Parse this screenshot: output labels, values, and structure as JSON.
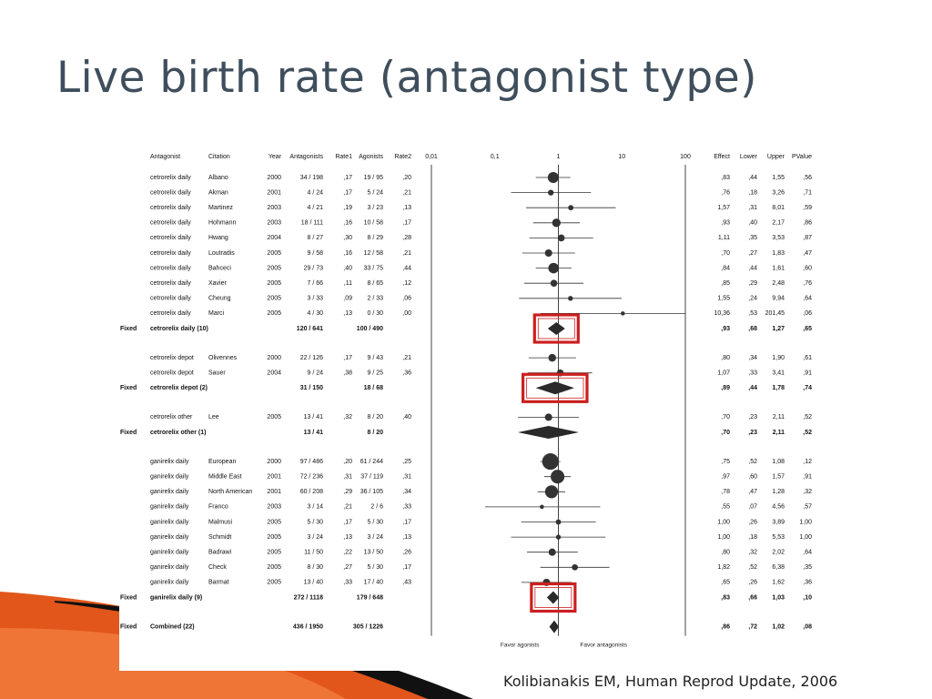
{
  "slide": {
    "title": "Live birth rate (antagonist type)",
    "citation": "Kolibianakis EM, Human Reprod Update, 2006"
  },
  "colors": {
    "title": "#3f4e5c",
    "highlight": "#cc1f1f",
    "marks": "#333333",
    "deco_orange": "#e2561b",
    "deco_black": "#111111"
  },
  "chart_data": {
    "type": "forest",
    "axis": {
      "scale": "log",
      "ticks": [
        "0,01",
        "0,1",
        "1",
        "10",
        "100"
      ],
      "tick_values": [
        0.01,
        0.1,
        1,
        10,
        100
      ]
    },
    "favor_left": "Favor agonists",
    "favor_right": "Favor antagonists",
    "columns": {
      "antagonist": "Antagonist",
      "citation": "Citation",
      "year": "Year",
      "antagonists": "Antagonists",
      "rate1": "Rate1",
      "agonists": "Agonists",
      "rate2": "Rate2",
      "effect": "Effect",
      "lower": "Lower",
      "upper": "Upper",
      "pvalue": "PValue"
    },
    "rows": [
      {
        "kind": "study",
        "antagonist": "cetrorelix daily",
        "citation": "Albano",
        "year": "2000",
        "antagonists": "34 / 198",
        "rate1": ",17",
        "agonists": "19 / 95",
        "rate2": ",20",
        "effect": ",83",
        "lower": ",44",
        "upper": "1,55",
        "p": ",56",
        "est": 0.83,
        "lo": 0.44,
        "hi": 1.55,
        "w": 1.0
      },
      {
        "kind": "study",
        "antagonist": "cetrorelix daily",
        "citation": "Akman",
        "year": "2001",
        "antagonists": "4 / 24",
        "rate1": ",17",
        "agonists": "5 / 24",
        "rate2": ",21",
        "effect": ",76",
        "lower": ",18",
        "upper": "3,26",
        "p": ",71",
        "est": 0.76,
        "lo": 0.18,
        "hi": 3.26,
        "w": 0.35
      },
      {
        "kind": "study",
        "antagonist": "cetrorelix daily",
        "citation": "Martinez",
        "year": "2003",
        "antagonists": "4 / 21",
        "rate1": ",19",
        "agonists": "3 / 23",
        "rate2": ",13",
        "effect": "1,57",
        "lower": ",31",
        "upper": "8,01",
        "p": ",59",
        "est": 1.57,
        "lo": 0.31,
        "hi": 8.01,
        "w": 0.3
      },
      {
        "kind": "study",
        "antagonist": "cetrorelix daily",
        "citation": "Hohmann",
        "year": "2003",
        "antagonists": "18 / 111",
        "rate1": ",16",
        "agonists": "10 / 58",
        "rate2": ",17",
        "effect": ",93",
        "lower": ",40",
        "upper": "2,17",
        "p": ",86",
        "est": 0.93,
        "lo": 0.4,
        "hi": 2.17,
        "w": 0.7
      },
      {
        "kind": "study",
        "antagonist": "cetrorelix daily",
        "citation": "Hwang",
        "year": "2004",
        "antagonists": "8 / 27",
        "rate1": ",30",
        "agonists": "8 / 29",
        "rate2": ",28",
        "effect": "1,11",
        "lower": ",35",
        "upper": "3,53",
        "p": ",87",
        "est": 1.11,
        "lo": 0.35,
        "hi": 3.53,
        "w": 0.5
      },
      {
        "kind": "study",
        "antagonist": "cetrorelix daily",
        "citation": "Loutradis",
        "year": "2005",
        "antagonists": "9 / 58",
        "rate1": ",16",
        "agonists": "12 / 58",
        "rate2": ",21",
        "effect": ",70",
        "lower": ",27",
        "upper": "1,83",
        "p": ",47",
        "est": 0.7,
        "lo": 0.27,
        "hi": 1.83,
        "w": 0.55
      },
      {
        "kind": "study",
        "antagonist": "cetrorelix daily",
        "citation": "Bahceci",
        "year": "2005",
        "antagonists": "29 / 73",
        "rate1": ",40",
        "agonists": "33 / 75",
        "rate2": ",44",
        "effect": ",84",
        "lower": ",44",
        "upper": "1,61",
        "p": ",60",
        "est": 0.84,
        "lo": 0.44,
        "hi": 1.61,
        "w": 0.95
      },
      {
        "kind": "study",
        "antagonist": "cetrorelix daily",
        "citation": "Xavier",
        "year": "2005",
        "antagonists": "7 / 66",
        "rate1": ",11",
        "agonists": "8 / 65",
        "rate2": ",12",
        "effect": ",85",
        "lower": ",29",
        "upper": "2,48",
        "p": ",76",
        "est": 0.85,
        "lo": 0.29,
        "hi": 2.48,
        "w": 0.5
      },
      {
        "kind": "study",
        "antagonist": "cetrorelix daily",
        "citation": "Cheung",
        "year": "2005",
        "antagonists": "3 / 33",
        "rate1": ",09",
        "agonists": "2 / 33",
        "rate2": ",06",
        "effect": "1,55",
        "lower": ",24",
        "upper": "9,94",
        "p": ",64",
        "est": 1.55,
        "lo": 0.24,
        "hi": 9.94,
        "w": 0.25
      },
      {
        "kind": "study",
        "antagonist": "cetrorelix daily",
        "citation": "Marci",
        "year": "2005",
        "antagonists": "4 / 30",
        "rate1": ",13",
        "agonists": "0 / 30",
        "rate2": ",00",
        "effect": "10,36",
        "lower": ",53",
        "upper": "201,45",
        "p": ",06",
        "est": 10.36,
        "lo": 0.53,
        "hi": 201.45,
        "w": 0.15
      },
      {
        "kind": "fixed",
        "label": "Fixed",
        "antagonist": "cetrorelix daily (10)",
        "antagonists": "120 / 641",
        "agonists": "100 / 490",
        "effect": ",93",
        "lower": ",68",
        "upper": "1,27",
        "p": ",65",
        "est": 0.93,
        "lo": 0.68,
        "hi": 1.27,
        "boxed": true
      },
      {
        "kind": "gap"
      },
      {
        "kind": "study",
        "antagonist": "cetrorelix depot",
        "citation": "Olivennes",
        "year": "2000",
        "antagonists": "22 / 126",
        "rate1": ",17",
        "agonists": "9 / 43",
        "rate2": ",21",
        "effect": ",80",
        "lower": ",34",
        "upper": "1,90",
        "p": ",61",
        "est": 0.8,
        "lo": 0.34,
        "hi": 1.9,
        "w": 0.6
      },
      {
        "kind": "study",
        "antagonist": "cetrorelix depot",
        "citation": "Sauer",
        "year": "2004",
        "antagonists": "9 / 24",
        "rate1": ",38",
        "agonists": "9 / 25",
        "rate2": ",36",
        "effect": "1,07",
        "lower": ",33",
        "upper": "3,41",
        "p": ",91",
        "est": 1.07,
        "lo": 0.33,
        "hi": 3.41,
        "w": 0.5
      },
      {
        "kind": "fixed",
        "label": "Fixed",
        "antagonist": "cetrorelix depot (2)",
        "antagonists": "31 / 150",
        "agonists": "18 / 68",
        "effect": ",89",
        "lower": ",44",
        "upper": "1,78",
        "p": ",74",
        "est": 0.89,
        "lo": 0.44,
        "hi": 1.78,
        "boxed": true
      },
      {
        "kind": "gap"
      },
      {
        "kind": "study",
        "antagonist": "cetrorelix other",
        "citation": "Lee",
        "year": "2005",
        "antagonists": "13 / 41",
        "rate1": ",32",
        "agonists": "8 / 20",
        "rate2": ",40",
        "effect": ",70",
        "lower": ",23",
        "upper": "2,11",
        "p": ",52",
        "est": 0.7,
        "lo": 0.23,
        "hi": 2.11,
        "w": 0.55
      },
      {
        "kind": "fixed",
        "label": "Fixed",
        "antagonist": "cetrorelix other (1)",
        "antagonists": "13 / 41",
        "agonists": "8 / 20",
        "effect": ",70",
        "lower": ",23",
        "upper": "2,11",
        "p": ",52",
        "est": 0.7,
        "lo": 0.23,
        "hi": 2.11,
        "boxed": false
      },
      {
        "kind": "gap"
      },
      {
        "kind": "study",
        "antagonist": "ganirelix daily",
        "citation": "European",
        "year": "2000",
        "antagonists": "97 / 486",
        "rate1": ",20",
        "agonists": "61 / 244",
        "rate2": ",25",
        "effect": ",75",
        "lower": ",52",
        "upper": "1,08",
        "p": ",12",
        "est": 0.75,
        "lo": 0.52,
        "hi": 1.08,
        "w": 1.7
      },
      {
        "kind": "study",
        "antagonist": "ganirelix daily",
        "citation": "Middle East",
        "year": "2001",
        "antagonists": "72 / 236",
        "rate1": ",31",
        "agonists": "37 / 119",
        "rate2": ",31",
        "effect": ",97",
        "lower": ",60",
        "upper": "1,57",
        "p": ",91",
        "est": 0.97,
        "lo": 0.6,
        "hi": 1.57,
        "w": 1.35
      },
      {
        "kind": "study",
        "antagonist": "ganirelix daily",
        "citation": "North American",
        "year": "2001",
        "antagonists": "60 / 208",
        "rate1": ",29",
        "agonists": "36 / 105",
        "rate2": ",34",
        "effect": ",78",
        "lower": ",47",
        "upper": "1,28",
        "p": ",32",
        "est": 0.78,
        "lo": 0.47,
        "hi": 1.28,
        "w": 1.25
      },
      {
        "kind": "study",
        "antagonist": "ganirelix daily",
        "citation": "Franco",
        "year": "2003",
        "antagonists": "3 / 14",
        "rate1": ",21",
        "agonists": "2 / 6",
        "rate2": ",33",
        "effect": ",55",
        "lower": ",07",
        "upper": "4,56",
        "p": ",57",
        "est": 0.55,
        "lo": 0.07,
        "hi": 4.56,
        "w": 0.15
      },
      {
        "kind": "study",
        "antagonist": "ganirelix daily",
        "citation": "Malmusi",
        "year": "2005",
        "antagonists": "5 / 30",
        "rate1": ",17",
        "agonists": "5 / 30",
        "rate2": ",17",
        "effect": "1,00",
        "lower": ",26",
        "upper": "3,89",
        "p": "1,00",
        "est": 1.0,
        "lo": 0.26,
        "hi": 3.89,
        "w": 0.3
      },
      {
        "kind": "study",
        "antagonist": "ganirelix daily",
        "citation": "Schmidt",
        "year": "2005",
        "antagonists": "3 / 24",
        "rate1": ",13",
        "agonists": "3 / 24",
        "rate2": ",13",
        "effect": "1,00",
        "lower": ",18",
        "upper": "5,53",
        "p": "1,00",
        "est": 1.0,
        "lo": 0.18,
        "hi": 5.53,
        "w": 0.25
      },
      {
        "kind": "study",
        "antagonist": "ganirelix daily",
        "citation": "Badrawi",
        "year": "2005",
        "antagonists": "11 / 50",
        "rate1": ",22",
        "agonists": "13 / 50",
        "rate2": ",26",
        "effect": ",80",
        "lower": ",32",
        "upper": "2,02",
        "p": ",64",
        "est": 0.8,
        "lo": 0.32,
        "hi": 2.02,
        "w": 0.55
      },
      {
        "kind": "study",
        "antagonist": "ganirelix daily",
        "citation": "Check",
        "year": "2005",
        "antagonists": "8 / 30",
        "rate1": ",27",
        "agonists": "5 / 30",
        "rate2": ",17",
        "effect": "1,82",
        "lower": ",52",
        "upper": "6,38",
        "p": ",35",
        "est": 1.82,
        "lo": 0.52,
        "hi": 6.38,
        "w": 0.4
      },
      {
        "kind": "study",
        "antagonist": "ganirelix daily",
        "citation": "Barmat",
        "year": "2005",
        "antagonists": "13 / 40",
        "rate1": ",33",
        "agonists": "17 / 40",
        "rate2": ",43",
        "effect": ",65",
        "lower": ",26",
        "upper": "1,62",
        "p": ",36",
        "est": 0.65,
        "lo": 0.26,
        "hi": 1.62,
        "w": 0.55
      },
      {
        "kind": "fixed",
        "label": "Fixed",
        "antagonist": "ganirelix daily (9)",
        "antagonists": "272 / 1118",
        "agonists": "179 / 648",
        "effect": ",83",
        "lower": ",66",
        "upper": "1,03",
        "p": ",10",
        "est": 0.83,
        "lo": 0.66,
        "hi": 1.03,
        "boxed": true
      },
      {
        "kind": "gap"
      },
      {
        "kind": "fixed",
        "label": "Fixed",
        "antagonist": "Combined (22)",
        "antagonists": "436 / 1950",
        "agonists": "305 / 1226",
        "effect": ",86",
        "lower": ",72",
        "upper": "1,02",
        "p": ",08",
        "est": 0.86,
        "lo": 0.72,
        "hi": 1.02,
        "boxed": false
      }
    ]
  }
}
